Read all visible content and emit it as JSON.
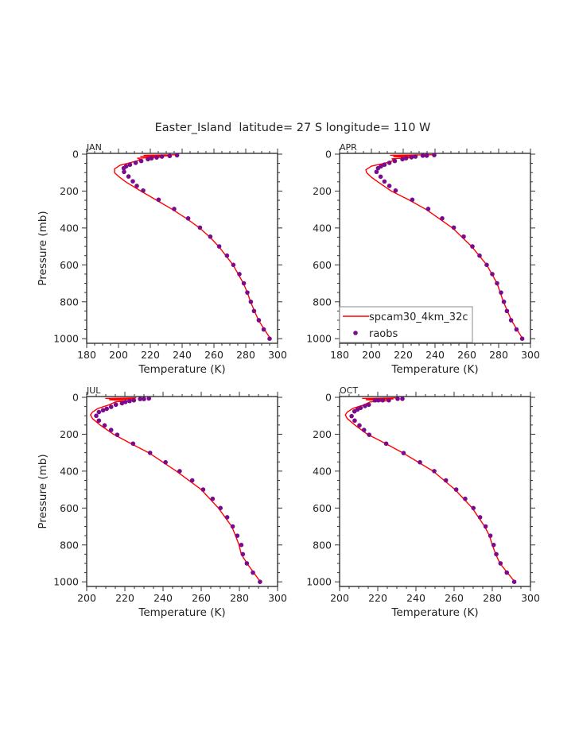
{
  "chart_data": {
    "type": "line",
    "title": "Easter_Island  latitude= 27 S longitude= 110 W",
    "legend": {
      "placement": "bottom-left of APR panel",
      "entries": [
        "spcam30_4km_32c",
        "raobs"
      ]
    },
    "colors": {
      "model": "#ff0000",
      "obs": "#7b0a8c"
    },
    "panels": [
      {
        "label": "JAN",
        "xlabel": "Temperature (K)",
        "ylabel": "Pressure (mb)",
        "xlim": [
          180,
          300
        ],
        "ylim": [
          0,
          1025
        ],
        "xticks": [
          "180",
          "200",
          "220",
          "240",
          "260",
          "280",
          "300"
        ],
        "yticks": [
          "0",
          "200",
          "400",
          "600",
          "800",
          "1000"
        ],
        "model": {
          "p": [
            3,
            6,
            9,
            12,
            16,
            22,
            30,
            45,
            60,
            80,
            100,
            120,
            150,
            200,
            250,
            300,
            350,
            400,
            450,
            500,
            600,
            700,
            750,
            800,
            900,
            1000
          ],
          "T": [
            238,
            216,
            232,
            214,
            228,
            212,
            214,
            208,
            201,
            197.5,
            197.5,
            200,
            204.5,
            214,
            224,
            234,
            243,
            251,
            257.5,
            263,
            272,
            278.5,
            281,
            283,
            288,
            295.5
          ]
        },
        "obs": {
          "p": [
            6,
            10,
            13,
            18,
            22,
            27,
            37,
            47,
            57,
            66,
            76,
            96,
            121,
            147,
            172,
            197,
            247,
            297,
            348,
            398,
            447,
            500,
            550,
            600,
            650,
            700,
            750,
            800,
            850,
            900,
            950,
            1000
          ],
          "T": [
            236.8,
            232.2,
            227.3,
            224,
            220.8,
            218.5,
            214.3,
            210.8,
            207.2,
            204.8,
            203.3,
            203.5,
            206.3,
            209,
            211.5,
            215.5,
            225.2,
            235,
            243.8,
            251.2,
            257.7,
            263.3,
            268.2,
            272.2,
            276,
            278.8,
            281,
            283.2,
            285.2,
            288.2,
            291.3,
            295
          ]
        }
      },
      {
        "label": "APR",
        "xlabel": "Temperature (K)",
        "ylabel": "",
        "xlim": [
          180,
          300
        ],
        "ylim": [
          0,
          1025
        ],
        "xticks": [
          "180",
          "200",
          "220",
          "240",
          "260",
          "280",
          "300"
        ],
        "yticks": [
          "0",
          "200",
          "400",
          "600",
          "800",
          "1000"
        ],
        "model": {
          "p": [
            3,
            6,
            9,
            13,
            18,
            25,
            35,
            50,
            65,
            85,
            100,
            125,
            150,
            200,
            250,
            300,
            400,
            500,
            600,
            700,
            800,
            900,
            1000
          ],
          "T": [
            240,
            212,
            228,
            214,
            226,
            213,
            214,
            208,
            200,
            196.5,
            197,
            200,
            204,
            212.5,
            224,
            234.5,
            251,
            263,
            272.5,
            279,
            283,
            288,
            295
          ]
        },
        "obs": {
          "p": [
            5,
            8,
            8,
            13,
            17,
            22,
            27,
            37,
            47,
            57,
            66,
            76,
            96,
            122,
            148,
            172,
            197,
            247,
            297,
            348,
            398,
            447,
            500,
            550,
            600,
            650,
            700,
            750,
            800,
            850,
            900,
            950,
            1000
          ],
          "T": [
            239.5,
            234.8,
            232.3,
            227.7,
            225.2,
            221.8,
            219.5,
            214.7,
            211.3,
            208.2,
            206,
            204.2,
            203.2,
            205.8,
            208.2,
            211.3,
            215.2,
            225.7,
            235.7,
            244.5,
            251.8,
            258,
            263.5,
            268,
            272.5,
            276,
            279,
            281.5,
            283.3,
            285.2,
            287.8,
            291.2,
            294.8
          ]
        }
      },
      {
        "label": "JUL",
        "xlabel": "Temperature (K)",
        "ylabel": "Pressure (mb)",
        "xlim": [
          200,
          300
        ],
        "ylim": [
          0,
          1025
        ],
        "xticks": [
          "200",
          "220",
          "240",
          "260",
          "280",
          "300"
        ],
        "yticks": [
          "0",
          "200",
          "400",
          "600",
          "800",
          "1000"
        ],
        "model": {
          "p": [
            3,
            6,
            9,
            13,
            18,
            25,
            40,
            60,
            80,
            95,
            115,
            150,
            200,
            250,
            300,
            400,
            500,
            600,
            700,
            750,
            800,
            850,
            900,
            1000
          ],
          "T": [
            226,
            210,
            224,
            212,
            222,
            215,
            212,
            206,
            203,
            202,
            203,
            207,
            214,
            223,
            232.5,
            247,
            260,
            269,
            276,
            278,
            279.8,
            281,
            284,
            291
          ]
        },
        "obs": {
          "p": [
            6,
            9,
            9,
            16,
            20,
            25,
            32,
            40,
            52,
            62,
            70,
            80,
            100,
            126,
            152,
            177,
            203,
            251,
            301,
            352,
            400,
            450,
            500,
            550,
            600,
            650,
            700,
            750,
            800,
            850,
            900,
            950,
            1000
          ],
          "T": [
            232.6,
            230,
            228,
            224.7,
            222.5,
            220.3,
            218.5,
            215.3,
            212.8,
            210.5,
            208.6,
            206.4,
            205,
            206.4,
            209.4,
            212.8,
            216,
            224.3,
            233.2,
            241.3,
            248.7,
            255.3,
            261,
            266,
            270.1,
            273.6,
            276.5,
            278.9,
            281,
            281.8,
            283.9,
            287.1,
            290.8
          ]
        }
      },
      {
        "label": "OCT",
        "xlabel": "Temperature (K)",
        "ylabel": "",
        "xlim": [
          200,
          300
        ],
        "ylim": [
          0,
          1025
        ],
        "xticks": [
          "200",
          "220",
          "240",
          "260",
          "280",
          "300"
        ],
        "yticks": [
          "0",
          "200",
          "400",
          "600",
          "800",
          "1000"
        ],
        "model": {
          "p": [
            3,
            6,
            9,
            13,
            18,
            25,
            40,
            60,
            80,
            95,
            115,
            150,
            200,
            250,
            300,
            400,
            500,
            600,
            700,
            750,
            800,
            850,
            900,
            1000
          ],
          "T": [
            230,
            212,
            228,
            214,
            226,
            216,
            213,
            207,
            204,
            203,
            204,
            208,
            214.5,
            224,
            233,
            249,
            260.5,
            269.5,
            276,
            278.5,
            280,
            281.8,
            284,
            291.8
          ]
        },
        "obs": {
          "p": [
            8,
            8,
            16,
            16,
            16,
            16,
            40,
            47,
            57,
            66,
            76,
            102,
            126,
            152,
            177,
            203,
            251,
            302,
            352,
            400,
            450,
            500,
            550,
            600,
            650,
            700,
            750,
            800,
            850,
            900,
            950,
            1000
          ],
          "T": [
            232.9,
            230.4,
            225.8,
            222.6,
            220.3,
            218.6,
            215.3,
            213.3,
            211,
            209.4,
            207.8,
            206.3,
            207.9,
            210.4,
            212.8,
            215.5,
            224.4,
            233.5,
            242.1,
            249.6,
            255.7,
            261.1,
            265.8,
            270.1,
            273.6,
            276.5,
            279,
            280.7,
            282.1,
            284.3,
            287.6,
            291.5
          ]
        }
      }
    ]
  }
}
